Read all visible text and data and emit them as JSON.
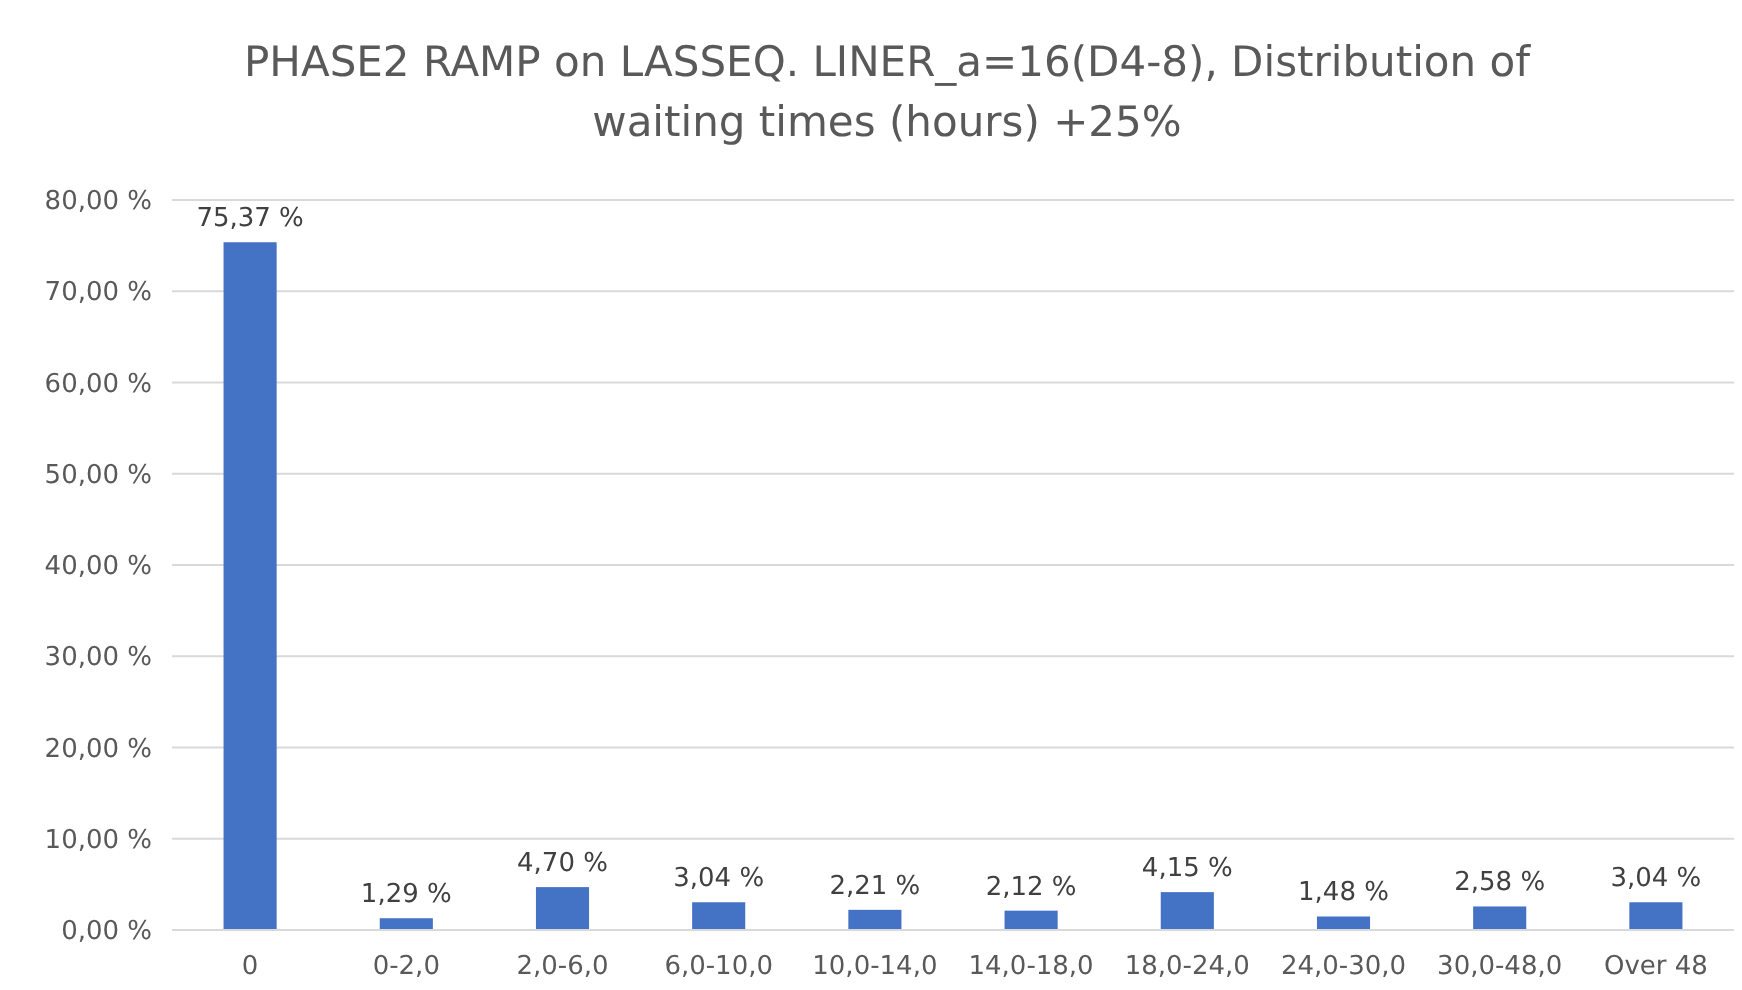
{
  "chart_data": {
    "type": "bar",
    "title": "PHASE2 RAMP on LASSEQ. LINER_a=16(D4-8), Distribution of waiting times (hours) +25%",
    "categories": [
      "0",
      "0-2,0",
      "2,0-6,0",
      "6,0-10,0",
      "10,0-14,0",
      "14,0-18,0",
      "18,0-24,0",
      "24,0-30,0",
      "30,0-48,0",
      "Over 48"
    ],
    "values": [
      75.37,
      1.29,
      4.7,
      3.04,
      2.21,
      2.12,
      4.15,
      1.48,
      2.58,
      3.04
    ],
    "value_labels": [
      "75,37 %",
      "1,29 %",
      "4,70 %",
      "3,04 %",
      "2,21 %",
      "2,12 %",
      "4,15 %",
      "1,48 %",
      "2,58 %",
      "3,04 %"
    ],
    "color": "#4472c4",
    "ylim": [
      0,
      80
    ],
    "yticks": [
      {
        "value": 0,
        "label": "0,00 %"
      },
      {
        "value": 10,
        "label": "10,00 %"
      },
      {
        "value": 20,
        "label": "20,00 %"
      },
      {
        "value": 30,
        "label": "30,00 %"
      },
      {
        "value": 40,
        "label": "40,00 %"
      },
      {
        "value": 50,
        "label": "50,00 %"
      },
      {
        "value": 60,
        "label": "60,00 %"
      },
      {
        "value": 70,
        "label": "70,00 %"
      },
      {
        "value": 80,
        "label": "80,00 %"
      }
    ],
    "grid": "y"
  }
}
